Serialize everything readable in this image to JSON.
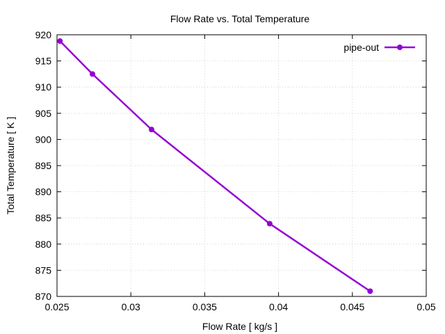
{
  "chart_data": {
    "type": "line",
    "title": "Flow Rate vs. Total Temperature",
    "xlabel": "Flow Rate [ kg/s ]",
    "ylabel": "Total Temperature [ K ]",
    "xlim": [
      0.025,
      0.05
    ],
    "ylim": [
      870,
      920
    ],
    "xticks": [
      0.025,
      0.03,
      0.035,
      0.04,
      0.045,
      0.05
    ],
    "xtick_labels": [
      "0.025",
      "0.03",
      "0.035",
      "0.04",
      "0.045",
      "0.05"
    ],
    "yticks": [
      870,
      875,
      880,
      885,
      890,
      895,
      900,
      905,
      910,
      915,
      920
    ],
    "ytick_labels": [
      "870",
      "875",
      "880",
      "885",
      "890",
      "895",
      "900",
      "905",
      "910",
      "915",
      "920"
    ],
    "grid": true,
    "legend_position": "top-right",
    "series": [
      {
        "name": "pipe-out",
        "color": "#9400d3",
        "x": [
          0.0252,
          0.0274,
          0.0314,
          0.0394,
          0.0462
        ],
        "y": [
          918.8,
          912.5,
          901.9,
          883.9,
          871.0
        ]
      }
    ]
  }
}
